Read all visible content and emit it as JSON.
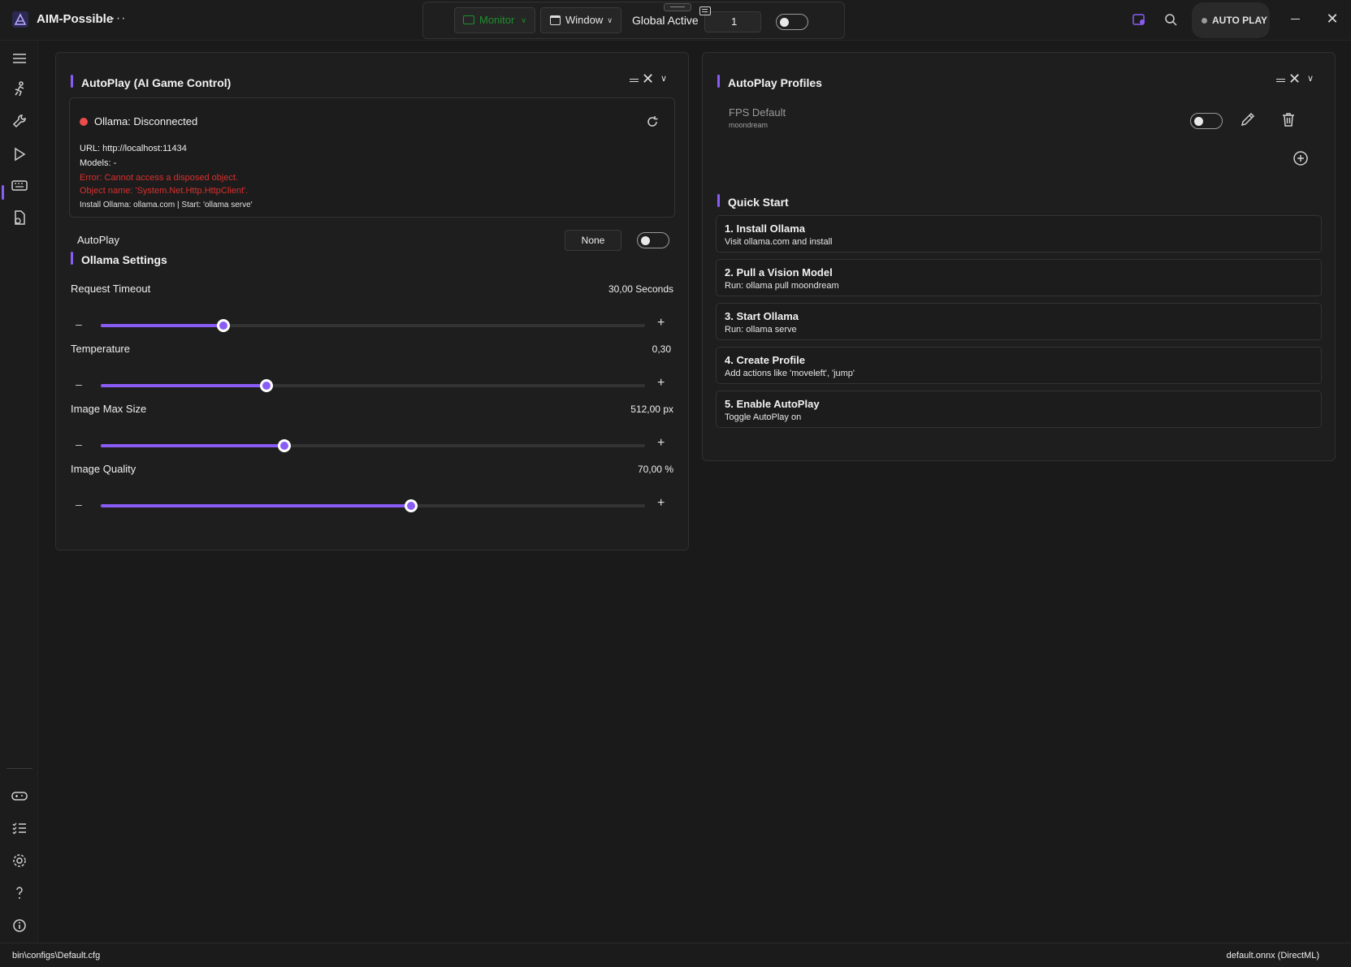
{
  "app": {
    "name": "AIM-Possible",
    "more": "···"
  },
  "topbar": {
    "monitor_label": "Monitor",
    "window_label": "Window",
    "global_active_label": "Global Active",
    "global_active_value": "1",
    "global_active_on": false,
    "autoplay_pill": "AUTO PLAY"
  },
  "colors": {
    "accent": "#8a5cf6",
    "error": "#d9302e",
    "disconnected": "#e84c4c",
    "monitor_green": "#1e8f2e"
  },
  "icons": {
    "sidebar_top": [
      "menu-icon",
      "running-figure-icon",
      "wrench-icon",
      "play-icon",
      "keyboard-icon",
      "document-sync-icon"
    ],
    "sidebar_bottom": [
      "gamepad-icon",
      "checklist-icon",
      "gear-icon",
      "help-icon",
      "info-icon"
    ]
  },
  "left_panel": {
    "title": "AutoPlay (AI Game Control)",
    "status": {
      "text": "Ollama: Disconnected",
      "url": "URL: http://localhost:11434",
      "models": "Models: -",
      "error1": "Error: Cannot access a disposed object.",
      "error2": "Object name: 'System.Net.Http.HttpClient'.",
      "install": "Install Ollama: ollama.com | Start: 'ollama serve'"
    },
    "autoplay_label": "AutoPlay",
    "autoplay_mode": "None",
    "autoplay_on": false,
    "settings_title": "Ollama Settings",
    "sliders": [
      {
        "label": "Request Timeout",
        "value": "30,00 Seconds",
        "fraction": 0.225
      },
      {
        "label": "Temperature",
        "value": "0,30",
        "fraction": 0.305
      },
      {
        "label": "Image Max Size",
        "value": "512,00 px",
        "fraction": 0.337
      },
      {
        "label": "Image Quality",
        "value": "70,00 %",
        "fraction": 0.57
      }
    ],
    "minus": "–",
    "plus": "+"
  },
  "right_panel": {
    "title": "AutoPlay Profiles",
    "profile": {
      "name": "FPS Default",
      "model": "moondream",
      "enabled": false
    },
    "quick_start_title": "Quick Start",
    "steps": [
      {
        "title": "1. Install Ollama",
        "desc": "Visit ollama.com and install"
      },
      {
        "title": "2. Pull a Vision Model",
        "desc": "Run: ollama pull moondream"
      },
      {
        "title": "3. Start Ollama",
        "desc": "Run: ollama serve"
      },
      {
        "title": "4. Create Profile",
        "desc": "Add actions like 'moveleft', 'jump'"
      },
      {
        "title": "5. Enable AutoPlay",
        "desc": "Toggle AutoPlay on"
      }
    ]
  },
  "statusbar": {
    "config_path": "bin\\configs\\Default.cfg",
    "model": "default.onnx (DirectML)"
  }
}
